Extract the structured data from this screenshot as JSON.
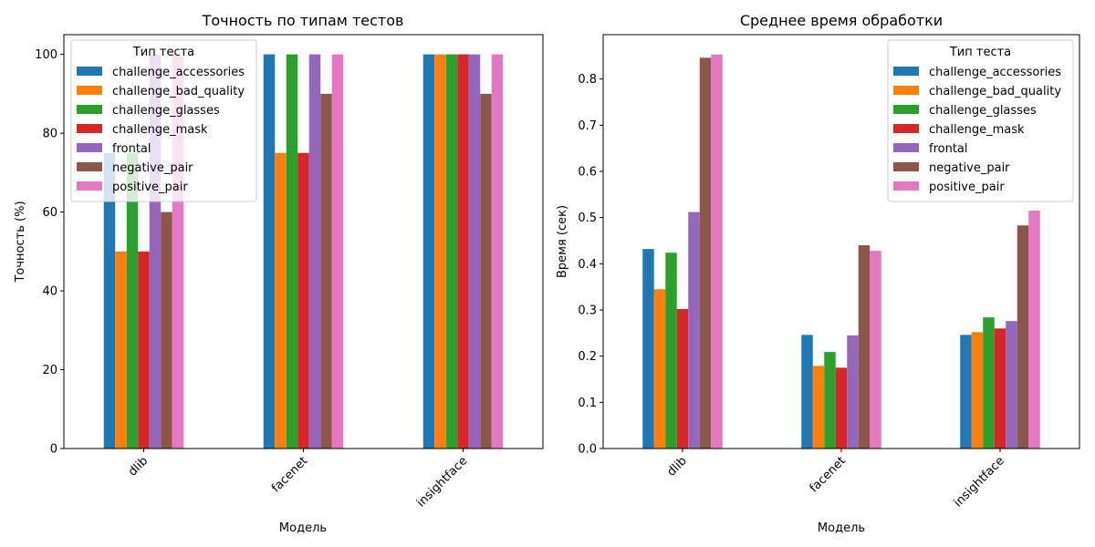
{
  "chart_data": [
    {
      "type": "bar",
      "title": "Точность по типам тестов",
      "xlabel": "Модель",
      "ylabel": "Точность (%)",
      "categories": [
        "dlib",
        "facenet",
        "insightface"
      ],
      "ylim": [
        0,
        105
      ],
      "yticks": [
        0,
        20,
        40,
        60,
        80,
        100
      ],
      "legend_title": "Тип теста",
      "legend_position": "top-left",
      "series": [
        {
          "name": "challenge_accessories",
          "color": "#1f77b4",
          "values": [
            75,
            100,
            100
          ]
        },
        {
          "name": "challenge_bad_quality",
          "color": "#ff7f0e",
          "values": [
            50,
            75,
            100
          ]
        },
        {
          "name": "challenge_glasses",
          "color": "#2ca02c",
          "values": [
            75,
            100,
            100
          ]
        },
        {
          "name": "challenge_mask",
          "color": "#d62728",
          "values": [
            50,
            75,
            100
          ]
        },
        {
          "name": "frontal",
          "color": "#9467bd",
          "values": [
            100,
            100,
            100
          ]
        },
        {
          "name": "negative_pair",
          "color": "#8c564b",
          "values": [
            60,
            90,
            90
          ]
        },
        {
          "name": "positive_pair",
          "color": "#e377c2",
          "values": [
            100,
            100,
            100
          ]
        }
      ]
    },
    {
      "type": "bar",
      "title": "Среднее время обработки",
      "xlabel": "Модель",
      "ylabel": "Время (сек)",
      "categories": [
        "dlib",
        "facenet",
        "insightface"
      ],
      "ylim": [
        0,
        0.896
      ],
      "yticks": [
        "0.0",
        "0.1",
        "0.2",
        "0.3",
        "0.4",
        "0.5",
        "0.6",
        "0.7",
        "0.8"
      ],
      "legend_title": "Тип теста",
      "legend_position": "top-right",
      "series": [
        {
          "name": "challenge_accessories",
          "color": "#1f77b4",
          "values": [
            0.432,
            0.246,
            0.246
          ]
        },
        {
          "name": "challenge_bad_quality",
          "color": "#ff7f0e",
          "values": [
            0.345,
            0.179,
            0.252
          ]
        },
        {
          "name": "challenge_glasses",
          "color": "#2ca02c",
          "values": [
            0.424,
            0.209,
            0.284
          ]
        },
        {
          "name": "challenge_mask",
          "color": "#d62728",
          "values": [
            0.302,
            0.175,
            0.26
          ]
        },
        {
          "name": "frontal",
          "color": "#9467bd",
          "values": [
            0.512,
            0.245,
            0.276
          ]
        },
        {
          "name": "negative_pair",
          "color": "#8c564b",
          "values": [
            0.846,
            0.44,
            0.483
          ]
        },
        {
          "name": "positive_pair",
          "color": "#e377c2",
          "values": [
            0.853,
            0.428,
            0.515
          ]
        }
      ]
    }
  ]
}
